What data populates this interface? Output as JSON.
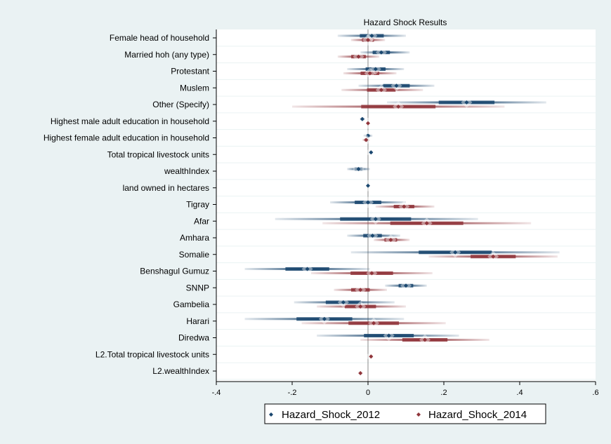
{
  "chart_data": {
    "type": "scatter",
    "title": "Hazard Shock Results",
    "xlabel": "",
    "ylabel": "",
    "xlim": [
      -0.4,
      0.6
    ],
    "xticks": [
      -0.4,
      -0.2,
      0,
      0.2,
      0.4,
      0.6
    ],
    "xtick_labels": [
      "-.4",
      "-.2",
      "0",
      ".2",
      ".4",
      ".6"
    ],
    "grid": true,
    "legend_position": "bottom",
    "categories": [
      "Female head of household",
      "Married hoh (any type)",
      "Protestant",
      "Muslem",
      "Other (Specify)",
      "Highest male adult education in household",
      "Highest female adult education in household",
      "Total tropical livestock units",
      "wealthIndex",
      "land owned in hectares",
      "Tigray",
      "Afar",
      "Amhara",
      "Somalie",
      "Benshagul Gumuz",
      "SNNP",
      "Gambelia",
      "Harari",
      "Diredwa",
      "L2.Total tropical livestock units",
      "L2.wealthIndex"
    ],
    "series": [
      {
        "name": "Hazard_Shock_2012",
        "color": "#1a476f",
        "values": [
          0.01,
          0.035,
          0.02,
          0.075,
          0.26,
          -0.015,
          0.0,
          0.008,
          -0.025,
          0.0,
          0.0,
          0.02,
          0.012,
          0.23,
          -0.16,
          0.1,
          -0.065,
          -0.115,
          0.055,
          null,
          null
        ],
        "ci_low": [
          -0.08,
          -0.02,
          -0.055,
          -0.025,
          0.05,
          -0.022,
          -0.012,
          0.003,
          -0.055,
          -0.002,
          -0.1,
          -0.245,
          -0.055,
          -0.045,
          -0.325,
          0.045,
          -0.195,
          -0.325,
          -0.135,
          null,
          null
        ],
        "ci_high": [
          0.1,
          0.11,
          0.095,
          0.175,
          0.47,
          -0.008,
          0.012,
          0.013,
          0.005,
          0.002,
          0.1,
          0.29,
          0.085,
          0.505,
          0.005,
          0.155,
          0.07,
          0.095,
          0.24,
          null,
          null
        ]
      },
      {
        "name": "Hazard_Shock_2014",
        "color": "#90353b",
        "values": [
          0.0,
          -0.025,
          0.005,
          0.035,
          0.08,
          0.0,
          -0.005,
          null,
          null,
          null,
          0.095,
          0.155,
          0.06,
          0.33,
          0.01,
          -0.02,
          -0.02,
          0.015,
          0.15,
          0.008,
          -0.02
        ],
        "ci_low": [
          -0.045,
          -0.08,
          -0.065,
          -0.07,
          -0.2,
          -0.003,
          -0.015,
          null,
          null,
          null,
          0.02,
          -0.12,
          0.015,
          0.16,
          -0.15,
          -0.09,
          -0.135,
          -0.175,
          -0.02,
          0.003,
          -0.025
        ],
        "ci_high": [
          0.045,
          0.03,
          0.075,
          0.145,
          0.36,
          0.003,
          0.005,
          null,
          null,
          null,
          0.175,
          0.43,
          0.11,
          0.5,
          0.17,
          0.05,
          0.1,
          0.205,
          0.32,
          0.013,
          -0.015
        ]
      }
    ]
  }
}
